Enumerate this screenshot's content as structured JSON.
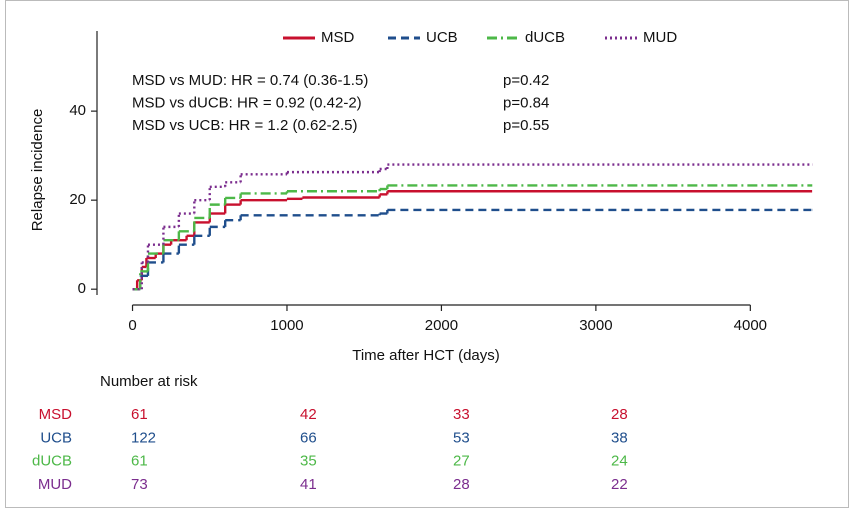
{
  "chart_data": {
    "type": "step",
    "x_label": "Time after HCT (days)",
    "y_label": "Relapse incidence",
    "xlim": [
      -230,
      4600
    ],
    "ylim": [
      -4,
      58
    ],
    "xticks": [
      0,
      1000,
      2000,
      3000,
      4000
    ],
    "yticks": [
      0,
      20,
      40
    ],
    "legend": "top",
    "series": [
      {
        "name": "MSD",
        "color": "#c8102e",
        "dash": "solid",
        "x": [
          0,
          30,
          60,
          90,
          150,
          200,
          250,
          350,
          400,
          500,
          600,
          700,
          1000,
          1100,
          1600,
          1650,
          4400
        ],
        "values": [
          0,
          2,
          5,
          7,
          8,
          10,
          11,
          12,
          15,
          17,
          19,
          20,
          20.3,
          20.6,
          21.3,
          22,
          22
        ]
      },
      {
        "name": "UCB",
        "color": "#1f4e8c",
        "dash": "dashed",
        "x": [
          0,
          50,
          100,
          200,
          300,
          400,
          500,
          600,
          700,
          1600,
          1650,
          4400
        ],
        "values": [
          0,
          3,
          6,
          8,
          10,
          12,
          14,
          15.5,
          16.6,
          17,
          17.8,
          17.8
        ]
      },
      {
        "name": "dUCB",
        "color": "#4db848",
        "dash": "dashdot",
        "x": [
          0,
          50,
          100,
          200,
          300,
          400,
          500,
          600,
          700,
          1000,
          1600,
          1650,
          4400
        ],
        "values": [
          0,
          4,
          8,
          11,
          13,
          16,
          19,
          20.5,
          21.5,
          22,
          22.5,
          23.3,
          23.3
        ]
      },
      {
        "name": "MUD",
        "color": "#7b2d8e",
        "dash": "dotted",
        "x": [
          0,
          60,
          100,
          200,
          300,
          400,
          500,
          600,
          700,
          1000,
          1600,
          1650,
          4400
        ],
        "values": [
          0,
          6,
          10,
          14,
          17,
          20,
          23,
          24,
          25.8,
          26.3,
          27,
          28,
          28
        ]
      }
    ],
    "annotations": [
      {
        "text": "MSD vs MUD: HR = 0.74 (0.36-1.5)",
        "p": "p=0.42"
      },
      {
        "text": "MSD vs dUCB: HR = 0.92 (0.42-2)",
        "p": "p=0.84"
      },
      {
        "text": "MSD vs UCB: HR = 1.2 (0.62-2.5)",
        "p": "p=0.55"
      }
    ],
    "risk_table": {
      "title": "Number at risk",
      "rows": [
        {
          "name": "MSD",
          "values": [
            61,
            42,
            33,
            28
          ]
        },
        {
          "name": "UCB",
          "values": [
            122,
            66,
            53,
            38
          ]
        },
        {
          "name": "dUCB",
          "values": [
            61,
            35,
            27,
            24
          ]
        },
        {
          "name": "MUD",
          "values": [
            73,
            41,
            28,
            22
          ]
        }
      ]
    }
  }
}
